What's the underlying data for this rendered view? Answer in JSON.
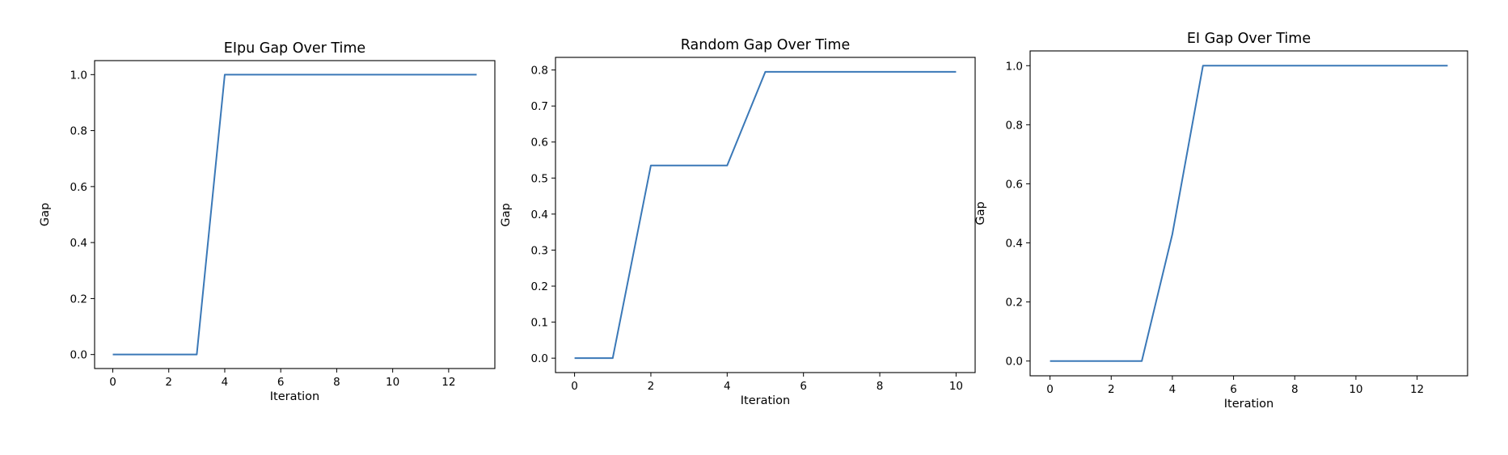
{
  "chart_data": [
    {
      "type": "line",
      "title": "EIpu Gap Over Time",
      "xlabel": "Iteration",
      "ylabel": "Gap",
      "xlim": [
        -0.65,
        13.65
      ],
      "ylim": [
        -0.05,
        1.05
      ],
      "xticks": [
        0,
        2,
        4,
        6,
        8,
        10,
        12
      ],
      "yticks": [
        0.0,
        0.2,
        0.4,
        0.6,
        0.8,
        1.0
      ],
      "ytick_labels": [
        "0.0",
        "0.2",
        "0.4",
        "0.6",
        "0.8",
        "1.0"
      ],
      "grid": false,
      "series": [
        {
          "color": "#3a78b7",
          "x": [
            0,
            1,
            2,
            3,
            4,
            5,
            6,
            7,
            8,
            9,
            10,
            11,
            12,
            13
          ],
          "y": [
            0,
            0,
            0,
            0,
            1,
            1,
            1,
            1,
            1,
            1,
            1,
            1,
            1,
            1
          ]
        }
      ]
    },
    {
      "type": "line",
      "title": "Random Gap Over Time",
      "xlabel": "Iteration",
      "ylabel": "Gap",
      "xlim": [
        -0.5,
        10.5
      ],
      "ylim": [
        -0.04,
        0.835
      ],
      "xticks": [
        0,
        2,
        4,
        6,
        8,
        10
      ],
      "yticks": [
        0.0,
        0.1,
        0.2,
        0.3,
        0.4,
        0.5,
        0.6,
        0.7,
        0.8
      ],
      "ytick_labels": [
        "0.0",
        "0.1",
        "0.2",
        "0.3",
        "0.4",
        "0.5",
        "0.6",
        "0.7",
        "0.8"
      ],
      "grid": false,
      "series": [
        {
          "color": "#3a78b7",
          "x": [
            0,
            1,
            2,
            3,
            4,
            5,
            6,
            7,
            8,
            9,
            10
          ],
          "y": [
            0,
            0,
            0.535,
            0.535,
            0.535,
            0.795,
            0.795,
            0.795,
            0.795,
            0.795,
            0.795
          ]
        }
      ]
    },
    {
      "type": "line",
      "title": "EI Gap Over Time",
      "xlabel": "Iteration",
      "ylabel": "Gap",
      "xlim": [
        -0.65,
        13.65
      ],
      "ylim": [
        -0.05,
        1.05
      ],
      "xticks": [
        0,
        2,
        4,
        6,
        8,
        10,
        12
      ],
      "yticks": [
        0.0,
        0.2,
        0.4,
        0.6,
        0.8,
        1.0
      ],
      "ytick_labels": [
        "0.0",
        "0.2",
        "0.4",
        "0.6",
        "0.8",
        "1.0"
      ],
      "grid": false,
      "series": [
        {
          "color": "#3a78b7",
          "x": [
            0,
            1,
            2,
            3,
            4,
            5,
            6,
            7,
            8,
            9,
            10,
            11,
            12,
            13
          ],
          "y": [
            0,
            0,
            0,
            0,
            0.43,
            1,
            1,
            1,
            1,
            1,
            1,
            1,
            1,
            1
          ]
        }
      ]
    }
  ]
}
